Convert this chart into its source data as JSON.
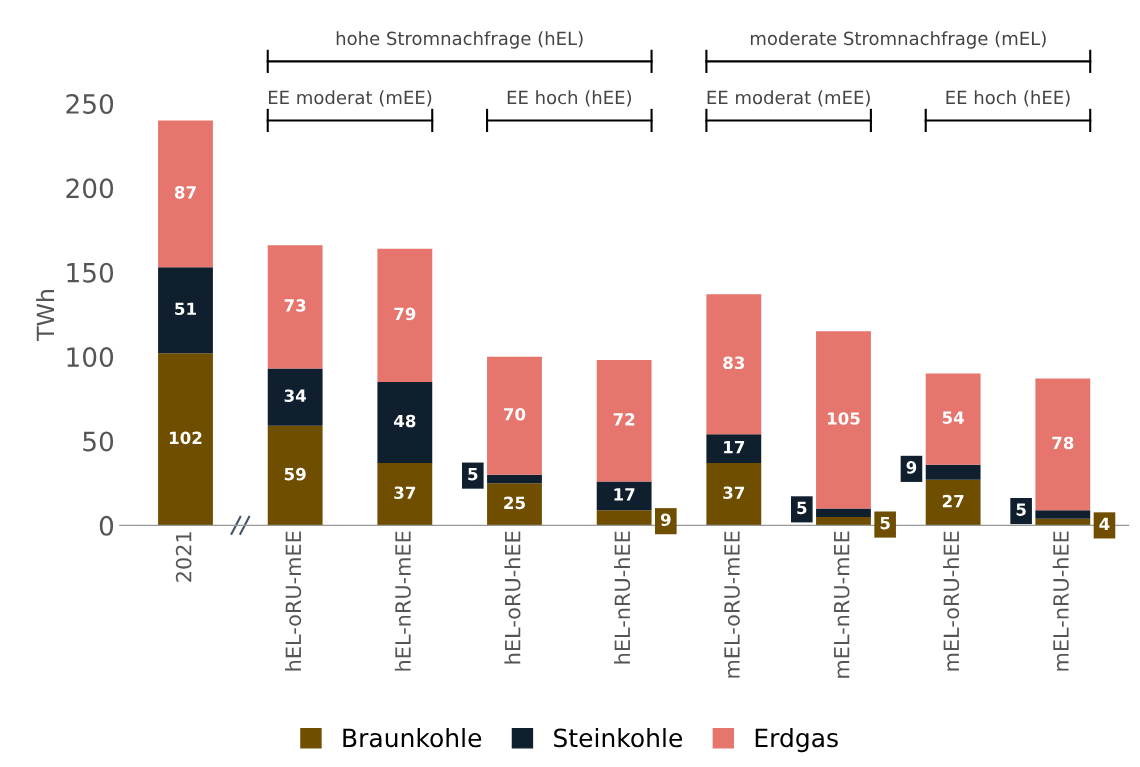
{
  "chart_data": {
    "type": "bar",
    "stacked": true,
    "ylabel": "TWh",
    "categories": [
      "2021",
      "hEL-oRU-mEE",
      "hEL-nRU-mEE",
      "hEL-oRU-hEE",
      "hEL-nRU-hEE",
      "mEL-oRU-mEE",
      "mEL-nRU-mEE",
      "mEL-oRU-hEE",
      "mEL-nRU-hEE"
    ],
    "series": [
      {
        "name": "Braunkohle",
        "color": "#6f4e00",
        "values": [
          102,
          59,
          37,
          25,
          9,
          37,
          5,
          27,
          4
        ]
      },
      {
        "name": "Steinkohle",
        "color": "#0f1f2e",
        "values": [
          51,
          34,
          48,
          5,
          17,
          17,
          5,
          9,
          5
        ]
      },
      {
        "name": "Erdgas",
        "color": "#e5756d",
        "values": [
          87,
          73,
          79,
          70,
          72,
          83,
          105,
          54,
          78
        ]
      }
    ],
    "ylim": [
      0,
      250
    ],
    "yticks": [
      0,
      50,
      100,
      150,
      200,
      250
    ],
    "data_labels": true,
    "legend": "bottom",
    "grid": false,
    "annotations": [
      "hohe Stromnachfrage (hEL)",
      "moderate Stromnachfrage (mEL)",
      "EE moderat (mEE)",
      "EE hoch (hEE)",
      "EE moderat (mEE)",
      "EE hoch (hEE)"
    ]
  }
}
